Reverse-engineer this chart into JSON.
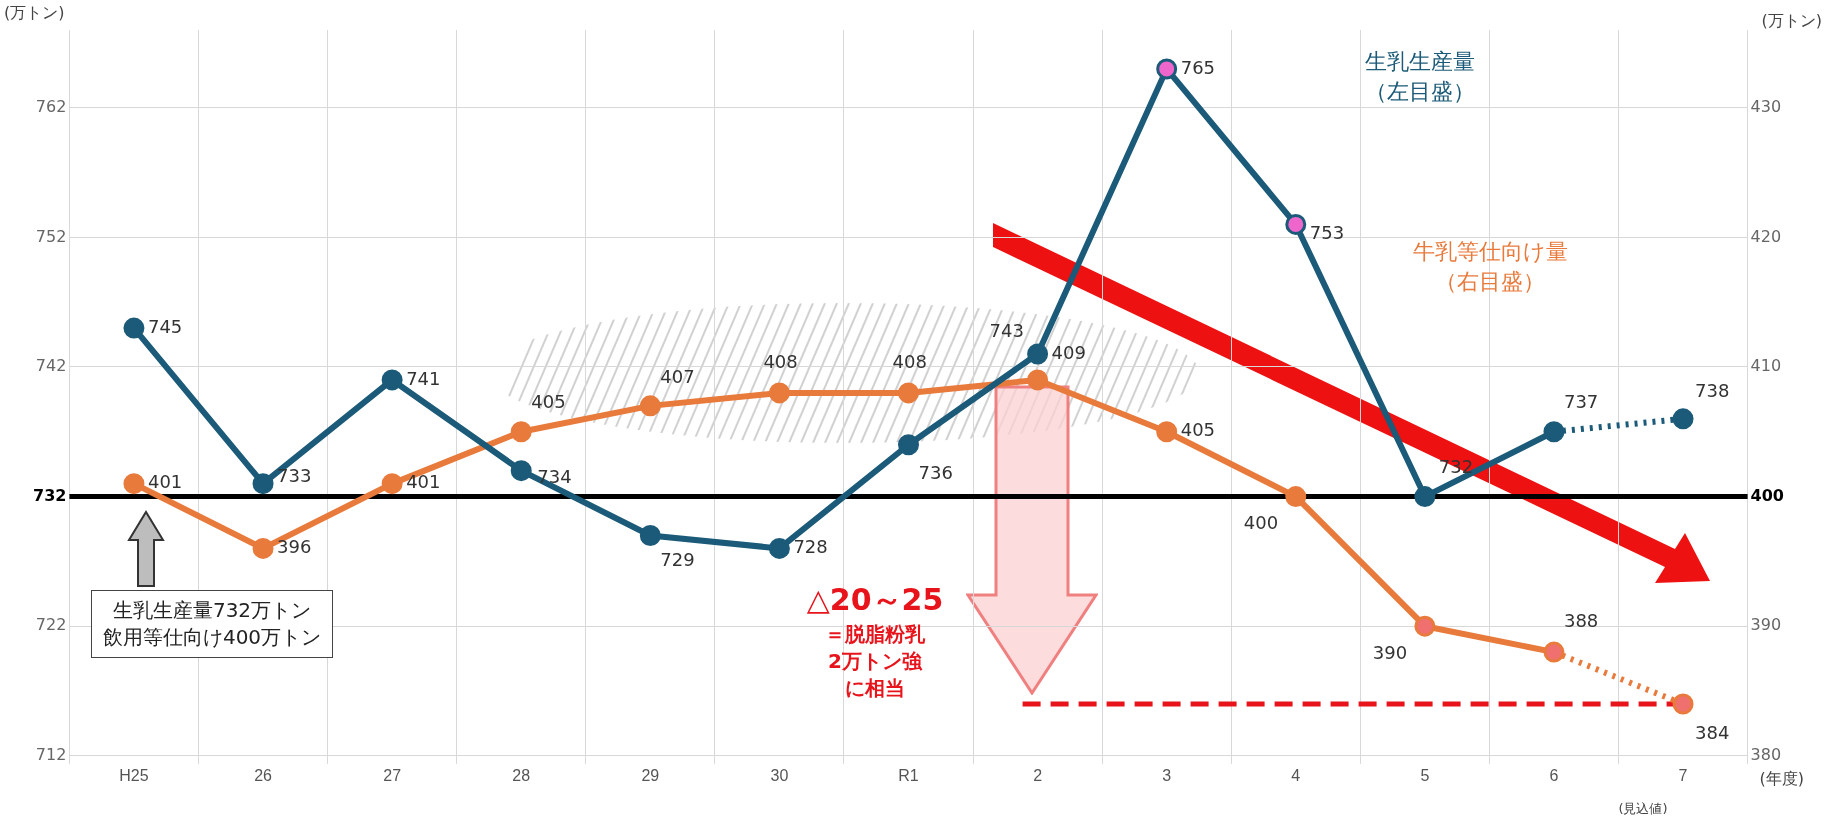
{
  "chart_data": {
    "type": "line",
    "categories": [
      "H25",
      "26",
      "27",
      "28",
      "29",
      "30",
      "R1",
      "2",
      "3",
      "4",
      "5",
      "6",
      "7"
    ],
    "xlabel": "(年度)",
    "ylabel": "(万トン)",
    "y2label": "(万トン)",
    "series": [
      {
        "name": "生乳生産量（左目盛）",
        "color": "#1b5a78",
        "values": [
          745,
          733,
          741,
          734,
          729,
          728,
          736,
          743,
          765,
          753,
          732,
          737,
          738
        ],
        "colors": [
          "#1b5a78",
          "#1b5a78",
          "#1b5a78",
          "#1b5a78",
          "#1b5a78",
          "#1b5a78",
          "#1b5a78",
          "#1b5a78",
          "#ee66cc",
          "#ee66cc",
          "#1b5a78",
          "#1b5a78",
          "#1b5a78"
        ]
      },
      {
        "name": "牛乳等仕向け量（右目盛）",
        "color": "#e87a3c",
        "axis": "y2",
        "values": [
          401,
          396,
          401,
          405,
          407,
          408,
          408,
          409,
          405,
          400,
          390,
          388,
          384
        ],
        "colors": [
          "#e87a3c",
          "#e87a3c",
          "#e87a3c",
          "#e87a3c",
          "#e87a3c",
          "#e87a3c",
          "#e87a3c",
          "#e87a3c",
          "#e87a3c",
          "#e87a3c",
          "#f07070",
          "#f07070",
          "#f07070"
        ]
      }
    ],
    "ylim": [
      712,
      768
    ],
    "yticks": [
      712,
      722,
      732,
      742,
      752,
      762
    ],
    "y2lim": [
      380,
      436
    ],
    "y2ticks": [
      380,
      390,
      400,
      410,
      420,
      430
    ],
    "ref_lines": [
      {
        "axis": "y",
        "value": 732,
        "color": "#000000",
        "line_style": "solid"
      },
      {
        "axis": "y2",
        "value": 384,
        "color": "#e8141c",
        "line_style": "dashed"
      }
    ],
    "annotations": [
      "生乳生産量732万トン飲用等仕向け400万トン",
      "△20～25＝脱脂粉乳2万トン強に相当",
      "(見込値)"
    ],
    "data_labels": true,
    "grid": true,
    "legend": false,
    "marker": "circle",
    "line_style": "solid"
  }
}
